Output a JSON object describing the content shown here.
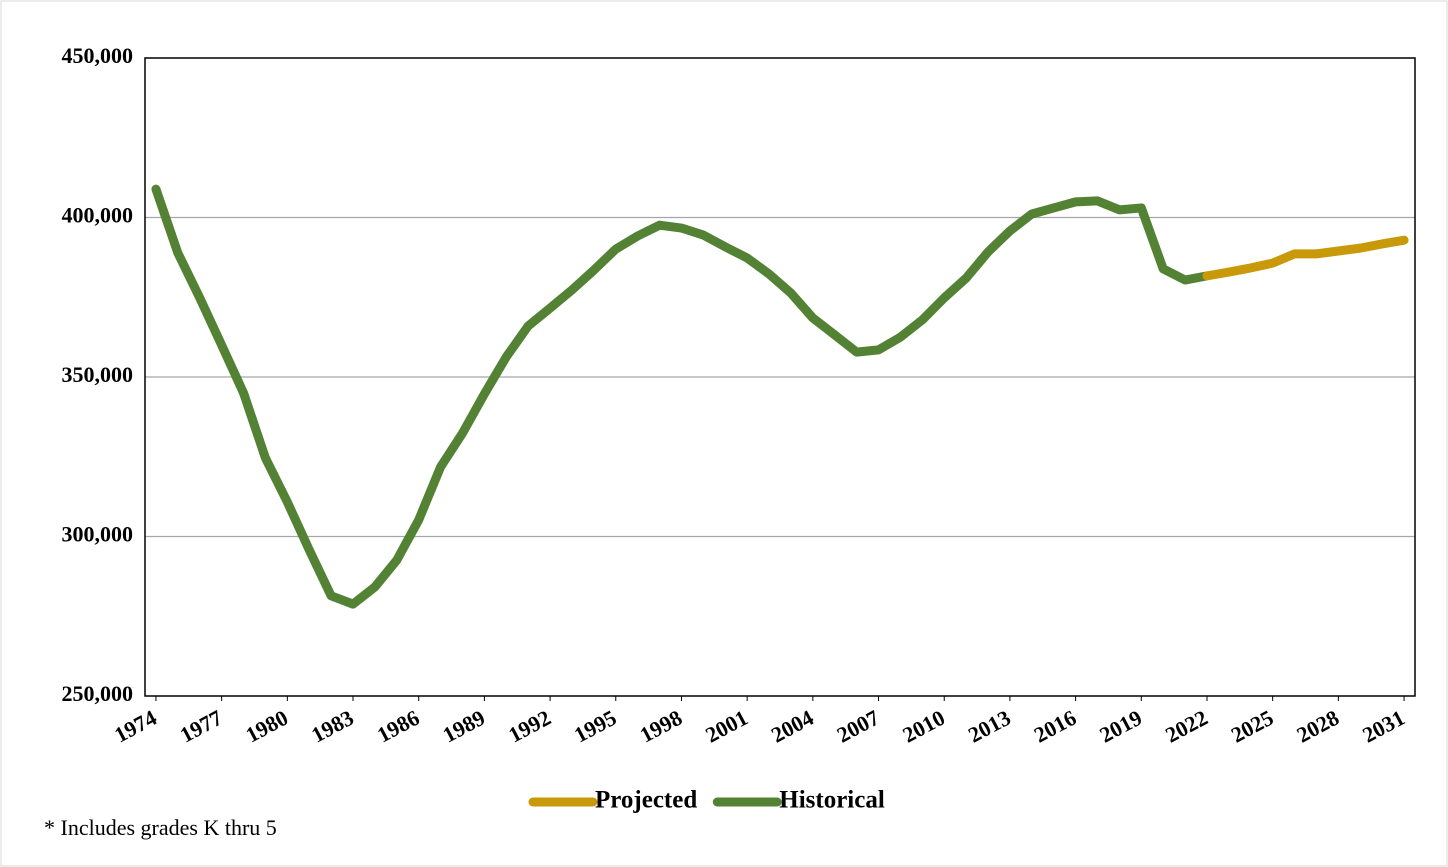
{
  "chart_data": {
    "type": "line",
    "x": [
      1974,
      1975,
      1976,
      1977,
      1978,
      1979,
      1980,
      1981,
      1982,
      1983,
      1984,
      1985,
      1986,
      1987,
      1988,
      1989,
      1990,
      1991,
      1992,
      1993,
      1994,
      1995,
      1996,
      1997,
      1998,
      1999,
      2000,
      2001,
      2002,
      2003,
      2004,
      2005,
      2006,
      2007,
      2008,
      2009,
      2010,
      2011,
      2012,
      2013,
      2014,
      2015,
      2016,
      2017,
      2018,
      2019,
      2020,
      2021,
      2022,
      2023,
      2024,
      2025,
      2026,
      2027,
      2028,
      2029,
      2030,
      2031
    ],
    "series": [
      {
        "name": "Projected",
        "color": "#c89a09",
        "values": [
          null,
          null,
          null,
          null,
          null,
          null,
          null,
          null,
          null,
          null,
          null,
          null,
          null,
          null,
          null,
          null,
          null,
          null,
          null,
          null,
          null,
          null,
          null,
          null,
          null,
          null,
          null,
          null,
          null,
          null,
          null,
          null,
          null,
          null,
          null,
          null,
          null,
          null,
          null,
          null,
          null,
          null,
          null,
          null,
          null,
          null,
          null,
          null,
          381700,
          382900,
          384200,
          385700,
          388600,
          388600,
          389500,
          390400,
          391700,
          392900
        ]
      },
      {
        "name": "Historical",
        "color": "#548235",
        "values": [
          408900,
          388900,
          374800,
          360000,
          345000,
          324600,
          310800,
          295800,
          281400,
          278800,
          284200,
          292600,
          305200,
          321800,
          332400,
          344700,
          356300,
          366000,
          371600,
          377300,
          383500,
          390100,
          394200,
          397600,
          396700,
          394500,
          390800,
          387300,
          382300,
          376300,
          368500,
          363200,
          357800,
          358500,
          362500,
          367900,
          374800,
          381000,
          389200,
          395800,
          401100,
          403000,
          404900,
          405200,
          402400,
          403000,
          383900,
          380400,
          381700,
          null,
          null,
          null,
          null,
          null,
          null,
          null,
          null,
          null
        ]
      }
    ],
    "xlim": [
      1973.5,
      2031.5
    ],
    "xticks": [
      1974,
      1977,
      1980,
      1983,
      1986,
      1989,
      1992,
      1995,
      1998,
      2001,
      2004,
      2007,
      2010,
      2013,
      2016,
      2019,
      2022,
      2025,
      2028,
      2031
    ],
    "ylim": [
      250000,
      450000
    ],
    "yticks": [
      {
        "value": 250000,
        "label": "250,000"
      },
      {
        "value": 300000,
        "label": "300,000"
      },
      {
        "value": 350000,
        "label": "350,000"
      },
      {
        "value": 400000,
        "label": "400,000"
      },
      {
        "value": 450000,
        "label": "450,000"
      }
    ],
    "grid": true,
    "legend": "bottom",
    "annotation": "* Includes grades K thru 5"
  }
}
